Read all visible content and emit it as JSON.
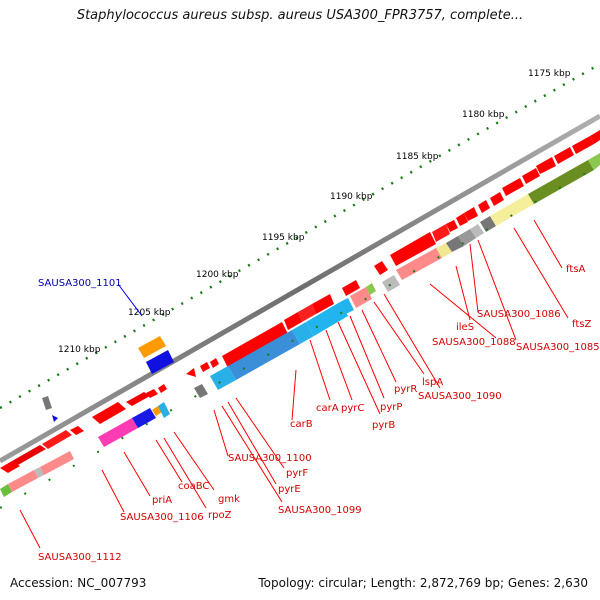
{
  "header": {
    "title": "Staphylococcus aureus subsp. aureus USA300_FPR3757, complete..."
  },
  "footer": {
    "accession": "Accession: NC_007793",
    "info": "Topology: circular; Length: 2,872,769 bp; Genes: 2,630"
  },
  "colors": {
    "gene": "#ff0000",
    "selected": "#0000ff",
    "label": "#d40000",
    "backbone": "#777777",
    "tick": "#1a7a1a"
  },
  "scale_ticks": [
    "1175 kbp",
    "1180 kbp",
    "1185 kbp",
    "1190 kbp",
    "1195 kbp",
    "1200 kbp",
    "1205 kbp",
    "1210 kbp"
  ],
  "gene_labels": [
    {
      "text": "ftsA"
    },
    {
      "text": "ftsZ"
    },
    {
      "text": "SAUSA300_1085"
    },
    {
      "text": "SAUSA300_1086"
    },
    {
      "text": "ileS"
    },
    {
      "text": "SAUSA300_1088"
    },
    {
      "text": "lspA"
    },
    {
      "text": "SAUSA300_1090"
    },
    {
      "text": "pyrR"
    },
    {
      "text": "pyrP"
    },
    {
      "text": "pyrB"
    },
    {
      "text": "pyrC"
    },
    {
      "text": "carA"
    },
    {
      "text": "carB"
    },
    {
      "text": "SAUSA300_1100"
    },
    {
      "text": "pyrF"
    },
    {
      "text": "pyrE"
    },
    {
      "text": "SAUSA300_1099"
    },
    {
      "text": "gmk"
    },
    {
      "text": "rpoZ"
    },
    {
      "text": "coaBC"
    },
    {
      "text": "priA"
    },
    {
      "text": "SAUSA300_1106"
    },
    {
      "text": "SAUSA300_1112"
    }
  ],
  "selected_gene": {
    "text": "SAUSA300_1101"
  }
}
